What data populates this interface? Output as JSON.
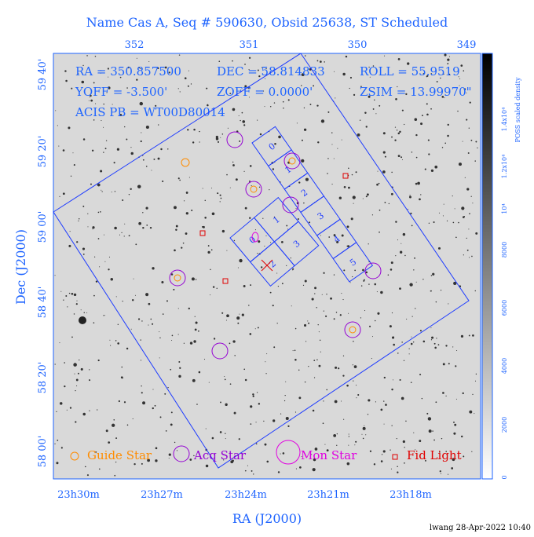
{
  "header": {
    "title": "Name Cas A, Seq # 590630, Obsid 25638, ST Scheduled"
  },
  "info": [
    "RA = 350.857500",
    "DEC = 58.814833",
    "ROLL = 55.9519",
    "YOFF = -3.500'",
    "ZOFF = 0.0000'",
    "ZSIM = 13.99970\"",
    "ACIS PB = WT00D80014"
  ],
  "axes": {
    "top_ticks": [
      "352",
      "351",
      "350",
      "349"
    ],
    "left_ticks": [
      "59 40'",
      "59 20'",
      "59 00'",
      "58 40'",
      "58 20'",
      "58 00'"
    ],
    "bottom_ticks": [
      "23h30m",
      "23h27m",
      "23h24m",
      "23h21m",
      "23h18m"
    ],
    "xlabel": "RA (J2000)",
    "ylabel": "Dec (J2000)"
  },
  "colorbar": {
    "label": "POSS scaled density",
    "ticks": [
      "0",
      "2000",
      "4000",
      "6000",
      "8000",
      "10⁴",
      "1.2x10⁴",
      "1.4x10⁴"
    ]
  },
  "chips": {
    "s_array": [
      "0",
      "1",
      "2",
      "3",
      "4",
      "5"
    ],
    "i_array": [
      "0",
      "1",
      "2",
      "3"
    ]
  },
  "legend": [
    "Guide Star",
    "Acq Star",
    "Mon Star",
    "Fid Light"
  ],
  "footer": "lwang 28-Apr-2022 10:40"
}
